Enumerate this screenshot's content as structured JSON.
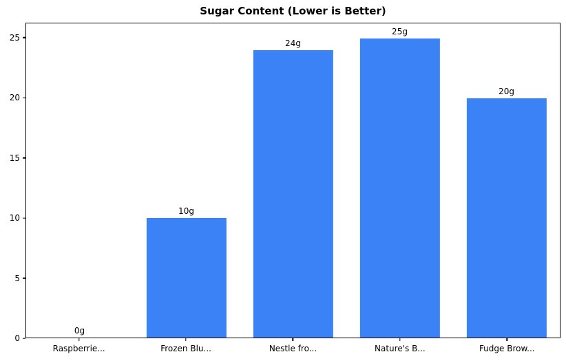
{
  "figure": {
    "background": "#ffffff",
    "text_color": "#000000"
  },
  "chart_data": {
    "type": "bar",
    "title": "Sugar Content (Lower is Better)",
    "categories": [
      "Raspberrie...",
      "Frozen Blu...",
      "Nestle fro...",
      "Nature's B...",
      "Fudge Brow..."
    ],
    "values": [
      0,
      10,
      24,
      25,
      20
    ],
    "bar_labels": [
      "0g",
      "10g",
      "24g",
      "25g",
      "20g"
    ],
    "bar_color": "#3b82f6",
    "xlabel": "",
    "ylabel": "",
    "ylim": [
      0,
      26.25
    ],
    "yticks": [
      0,
      5,
      10,
      15,
      20,
      25
    ],
    "grid": false,
    "legend_position": "none"
  }
}
